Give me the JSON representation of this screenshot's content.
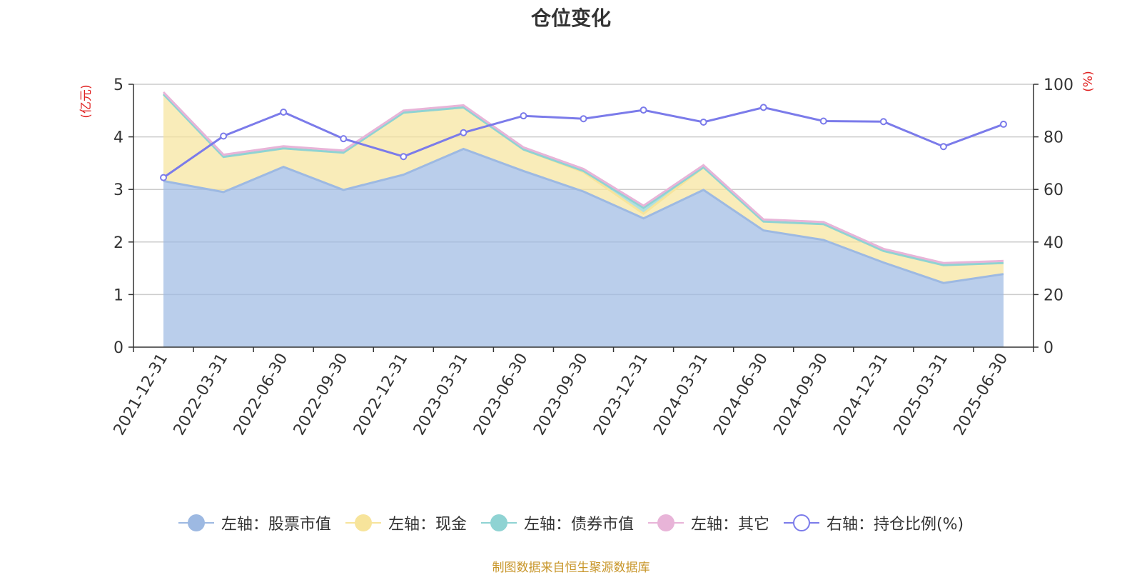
{
  "chart_data": {
    "type": "area",
    "title": "仓位变化",
    "ylabel_left": "(亿元)",
    "ylabel_right": "(%)",
    "ylim_left": [
      0,
      5
    ],
    "ylim_right": [
      0,
      100
    ],
    "yticks_left": [
      "0",
      "1",
      "2",
      "3",
      "4",
      "5"
    ],
    "yticks_right": [
      "0",
      "20",
      "40",
      "60",
      "80",
      "100"
    ],
    "grid": true,
    "legend_position": "bottom",
    "categories": [
      "2021-12-31",
      "2022-03-31",
      "2022-06-30",
      "2022-09-30",
      "2022-12-31",
      "2023-03-31",
      "2023-06-30",
      "2023-09-30",
      "2023-12-31",
      "2024-03-31",
      "2024-06-30",
      "2024-09-30",
      "2024-12-31",
      "2025-03-31",
      "2025-06-30"
    ],
    "series": [
      {
        "name": "左轴：股票市值",
        "axis": "left",
        "stack": true,
        "color": "#9db9e2",
        "values": [
          3.16,
          2.95,
          3.43,
          2.99,
          3.28,
          3.77,
          3.35,
          2.96,
          2.45,
          2.99,
          2.22,
          2.04,
          1.61,
          1.22,
          1.39
        ]
      },
      {
        "name": "左轴：现金",
        "axis": "left",
        "stack": true,
        "color": "#f7e49b",
        "values": [
          1.65,
          0.67,
          0.35,
          0.71,
          1.18,
          0.79,
          0.41,
          0.37,
          0.09,
          0.43,
          0.17,
          0.3,
          0.22,
          0.34,
          0.21
        ]
      },
      {
        "name": "左轴：债券市值",
        "axis": "left",
        "stack": true,
        "color": "#8fd3d3",
        "values": [
          0,
          0,
          0,
          0,
          0,
          0,
          0,
          0.02,
          0.11,
          0,
          0,
          0,
          0,
          0,
          0
        ]
      },
      {
        "name": "左轴：其它",
        "axis": "left",
        "stack": true,
        "color": "#e8b4d8",
        "values": [
          0.04,
          0.04,
          0.04,
          0.04,
          0.04,
          0.04,
          0.04,
          0.04,
          0.04,
          0.04,
          0.04,
          0.04,
          0.04,
          0.04,
          0.04
        ]
      },
      {
        "name": "右轴：持仓比例(%)",
        "axis": "right",
        "stack": false,
        "color": "#7b7bea",
        "values": [
          64.5,
          80.3,
          89.4,
          79.3,
          72.5,
          81.6,
          88.0,
          86.9,
          90.2,
          85.6,
          91.2,
          86.0,
          85.8,
          76.3,
          84.8
        ]
      }
    ]
  },
  "footer": "制图数据来自恒生聚源数据库"
}
